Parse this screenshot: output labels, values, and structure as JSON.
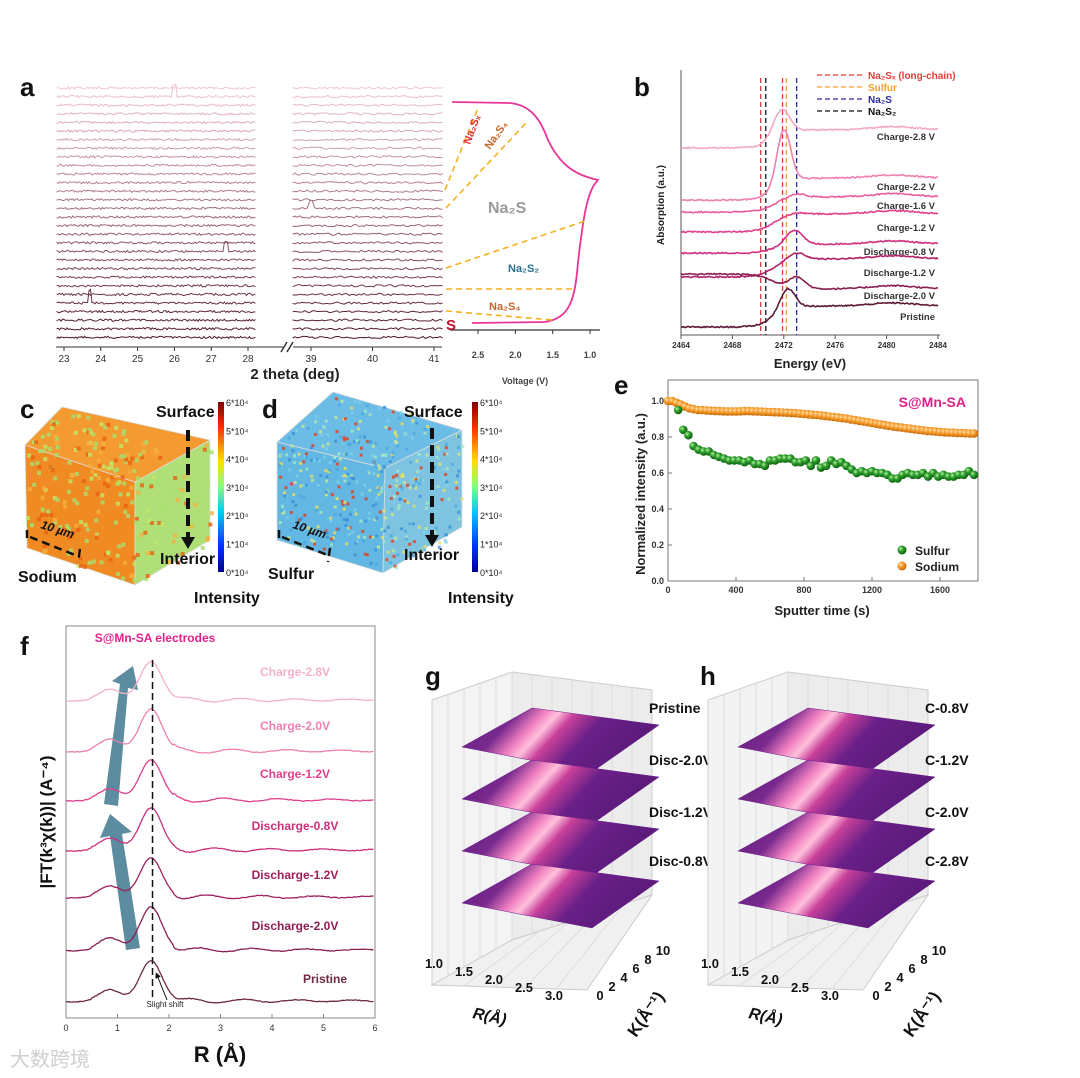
{
  "panel_labels": {
    "a": "a",
    "b": "b",
    "c": "c",
    "d": "d",
    "e": "e",
    "f": "f",
    "g": "g",
    "h": "h"
  },
  "watermark": "大数跨境",
  "chart_data": [
    {
      "id": "a_xrd",
      "type": "line",
      "xlabel": "2 theta (deg)",
      "x_ticks_left": [
        "23",
        "24",
        "25",
        "26",
        "27",
        "28"
      ],
      "x_ticks_right": [
        "39",
        "40",
        "41"
      ],
      "xlim_left": [
        22.8,
        28.2
      ],
      "xlim_right": [
        38.7,
        41.15
      ],
      "n_patterns": 30,
      "color_top": "#f2c6d6",
      "color_bottom": "#4e1428",
      "sharp_features": [
        {
          "two_theta": 23.7,
          "pattern": 25,
          "height": 2.2
        },
        {
          "two_theta": 26.0,
          "pattern": 1,
          "height": 2.0
        },
        {
          "two_theta": 27.4,
          "pattern": 19,
          "height": 1.6
        },
        {
          "two_theta": 39.0,
          "pattern": 14,
          "height": 1.4
        }
      ]
    },
    {
      "id": "a_voltage",
      "type": "line",
      "xlabel": "Voltage (V)",
      "x_ticks": [
        "2.5",
        "2.0",
        "1.5",
        "1.0"
      ],
      "curve_color": "#e8359a",
      "region_labels": [
        {
          "text": "Na₂Sₓ",
          "color": "#e03030"
        },
        {
          "text": "Na₂S₄",
          "color": "#c8642a"
        },
        {
          "text": "Na₂S",
          "color": "#9a9a9a"
        },
        {
          "text": "Na₂S₂",
          "color": "#2a6f8e"
        },
        {
          "text": "Na₂S₄",
          "color": "#c8642a"
        },
        {
          "text": "S",
          "color": "#c0102a"
        }
      ]
    },
    {
      "id": "b_xanes",
      "type": "line",
      "xlabel": "Energy (eV)",
      "ylabel": "Absorption (a.u.)",
      "xlim": [
        2464,
        2484
      ],
      "ylim": [
        0,
        10
      ],
      "x_ticks": [
        "2464",
        "2468",
        "2472",
        "2476",
        "2480",
        "2484"
      ],
      "legend": [
        {
          "label": "Na₂Sₓ (long-chain)",
          "color": "#e83a3a",
          "energies": [
            2470.2,
            2471.9
          ]
        },
        {
          "label": "Sulfur",
          "color": "#f5a030",
          "energies": [
            2472.2
          ]
        },
        {
          "label": "Na₂S",
          "color": "#2a2aa0",
          "energies": [
            2473.0
          ]
        },
        {
          "label": "Na₂S₂",
          "color": "#111111",
          "energies": [
            2470.6
          ]
        }
      ],
      "series": [
        {
          "name": "Charge-2.8 V",
          "color": "#f4a8c8",
          "left": 7.06,
          "right": 7.74,
          "peak_e": 2471.8,
          "peak": 8.5,
          "width": 0.9
        },
        {
          "name": "Charge-2.2 V",
          "color": "#f080b0",
          "left": 5.09,
          "right": 5.92,
          "peak_e": 2472.0,
          "peak": 7.74,
          "width": 0.75
        },
        {
          "name": "Charge-1.6 V",
          "color": "#e8609c",
          "left": 4.64,
          "right": 5.21,
          "peak_e": 2473.0,
          "peak": 5.32,
          "width": 0.9
        },
        {
          "name": "Charge-1.2 V",
          "color": "#e0408c",
          "left": 3.89,
          "right": 4.57,
          "peak_e": 2473.0,
          "peak": 4.6,
          "width": 0.9
        },
        {
          "name": "Discharge-0.8 V",
          "color": "#d02f80",
          "left": 3.09,
          "right": 3.43,
          "peak_e": 2472.8,
          "peak": 3.96,
          "width": 0.9
        },
        {
          "name": "Discharge-1.2 V",
          "color": "#b02068",
          "left": 2.19,
          "right": 2.87,
          "peak_e": 2473.0,
          "peak": 3.09,
          "width": 0.9
        },
        {
          "name": "Discharge-2.0 V",
          "color": "#8a1f52",
          "left": 2.3,
          "right": 1.74,
          "peak_e": 2473.0,
          "peak": 2.2,
          "width": 0.9
        },
        {
          "name": "Pristine",
          "color": "#5c1a38",
          "left": 0.3,
          "right": 1.09,
          "peak_e": 2472.3,
          "peak": 1.74,
          "width": 0.8
        }
      ]
    },
    {
      "id": "c_tof_sodium",
      "type": "heatmap",
      "element": "Sodium",
      "scale_bar": "10 µm",
      "surface_label": "Surface",
      "interior_label": "Interior",
      "colorbar_title": "Intensity",
      "colorbar_ticks": [
        "6*10⁴",
        "5*10⁴",
        "4*10⁴",
        "3*10⁴",
        "2*10⁴",
        "1*10⁴",
        "0*10⁴"
      ]
    },
    {
      "id": "d_tof_sulfur",
      "type": "heatmap",
      "element": "Sulfur",
      "scale_bar": "10 µm",
      "surface_label": "Surface",
      "interior_label": "Interior",
      "colorbar_title": "Intensity",
      "colorbar_ticks": [
        "6*10⁴",
        "5*10⁴",
        "4*10⁴",
        "3*10⁴",
        "2*10⁴",
        "1*10⁴",
        "0*10⁴"
      ]
    },
    {
      "id": "e_depth",
      "type": "scatter",
      "title": "S@Mn-SA",
      "title_color": "#e0208a",
      "xlabel": "Sputter time (s)",
      "ylabel": "Normalized intensity (a.u.)",
      "xlim": [
        0,
        1800
      ],
      "ylim": [
        0,
        1.05
      ],
      "x_ticks": [
        "0",
        "400",
        "800",
        "1200",
        "1600"
      ],
      "y_ticks": [
        "0.0",
        "0.2",
        "0.4",
        "0.6",
        "0.8",
        "1.0"
      ],
      "series": [
        {
          "name": "Sulfur",
          "color": "#2a9a2a",
          "x_start": 60,
          "x_step": 30,
          "values": [
            0.95,
            0.84,
            0.81,
            0.75,
            0.73,
            0.72,
            0.72,
            0.7,
            0.69,
            0.68,
            0.67,
            0.67,
            0.67,
            0.66,
            0.67,
            0.65,
            0.65,
            0.64,
            0.67,
            0.67,
            0.68,
            0.68,
            0.68,
            0.66,
            0.66,
            0.67,
            0.64,
            0.67,
            0.63,
            0.64,
            0.67,
            0.65,
            0.66,
            0.64,
            0.62,
            0.6,
            0.61,
            0.6,
            0.61,
            0.6,
            0.6,
            0.59,
            0.57,
            0.57,
            0.59,
            0.6,
            0.59,
            0.59,
            0.6,
            0.58,
            0.6,
            0.58,
            0.59,
            0.58,
            0.58,
            0.59,
            0.59,
            0.61,
            0.59
          ]
        },
        {
          "name": "Sodium",
          "color": "#f59020",
          "x_start": 0,
          "x_step": 25,
          "values": [
            1.0,
            1.0,
            0.99,
            0.98,
            0.97,
            0.96,
            0.955,
            0.95,
            0.95,
            0.948,
            0.946,
            0.945,
            0.944,
            0.943,
            0.942,
            0.942,
            0.942,
            0.943,
            0.944,
            0.944,
            0.943,
            0.942,
            0.941,
            0.94,
            0.939,
            0.938,
            0.937,
            0.936,
            0.935,
            0.934,
            0.932,
            0.93,
            0.928,
            0.926,
            0.924,
            0.922,
            0.92,
            0.917,
            0.914,
            0.911,
            0.908,
            0.905,
            0.902,
            0.898,
            0.894,
            0.89,
            0.886,
            0.882,
            0.878,
            0.874,
            0.87,
            0.866,
            0.862,
            0.858,
            0.855,
            0.852,
            0.849,
            0.846,
            0.843,
            0.84,
            0.837,
            0.834,
            0.832,
            0.83,
            0.828,
            0.826,
            0.825,
            0.824,
            0.823,
            0.822,
            0.821,
            0.82,
            0.82
          ]
        }
      ]
    },
    {
      "id": "f_exafs",
      "type": "line",
      "title": "S@Mn-SA electrodes",
      "title_color": "#e0208a",
      "xlabel": "R (Å)",
      "ylabel": "|FT(k³χ(k))| (A⁻⁴)",
      "xlim": [
        0,
        6
      ],
      "ylim": [
        0,
        8
      ],
      "x_ticks": [
        "0",
        "1",
        "2",
        "3",
        "4",
        "5",
        "6"
      ],
      "peak_R": 1.65,
      "annotation": "Slight shift",
      "series": [
        {
          "name": "Charge-2.8V",
          "color": "#f4b0cc",
          "offset": 6.49,
          "amplitude": 0.78
        },
        {
          "name": "Charge-2.0V",
          "color": "#ec80b0",
          "offset": 5.45,
          "amplitude": 0.86
        },
        {
          "name": "Charge-1.2V",
          "color": "#e0408c",
          "offset": 4.45,
          "amplitude": 0.82
        },
        {
          "name": "Discharge-0.8V",
          "color": "#c8307a",
          "offset": 3.43,
          "amplitude": 0.86
        },
        {
          "name": "Discharge-1.2V",
          "color": "#a0205e",
          "offset": 2.47,
          "amplitude": 0.8
        },
        {
          "name": "Discharge-2.0V",
          "color": "#8a1f52",
          "offset": 1.39,
          "amplitude": 0.88
        },
        {
          "name": "Pristine",
          "color": "#6e2a45",
          "offset": 0.35,
          "amplitude": 0.82
        }
      ]
    },
    {
      "id": "g_wavelet",
      "type": "heatmap",
      "xlabel": "R(Å)",
      "ylabel": "K(Å⁻¹)",
      "r_ticks": [
        "1.0",
        "1.5",
        "2.0",
        "2.5",
        "3.0"
      ],
      "k_ticks": [
        "0",
        "2",
        "4",
        "6",
        "8",
        "10"
      ],
      "layers": [
        "Pristine",
        "Disc-2.0V",
        "Disc-1.2V",
        "Disc-0.8V"
      ]
    },
    {
      "id": "h_wavelet",
      "type": "heatmap",
      "xlabel": "R(Å)",
      "ylabel": "K(Å⁻¹)",
      "r_ticks": [
        "1.0",
        "1.5",
        "2.0",
        "2.5",
        "3.0"
      ],
      "k_ticks": [
        "0",
        "2",
        "4",
        "6",
        "8",
        "10"
      ],
      "layers": [
        "C-0.8V",
        "C-1.2V",
        "C-2.0V",
        "C-2.8V"
      ]
    }
  ]
}
